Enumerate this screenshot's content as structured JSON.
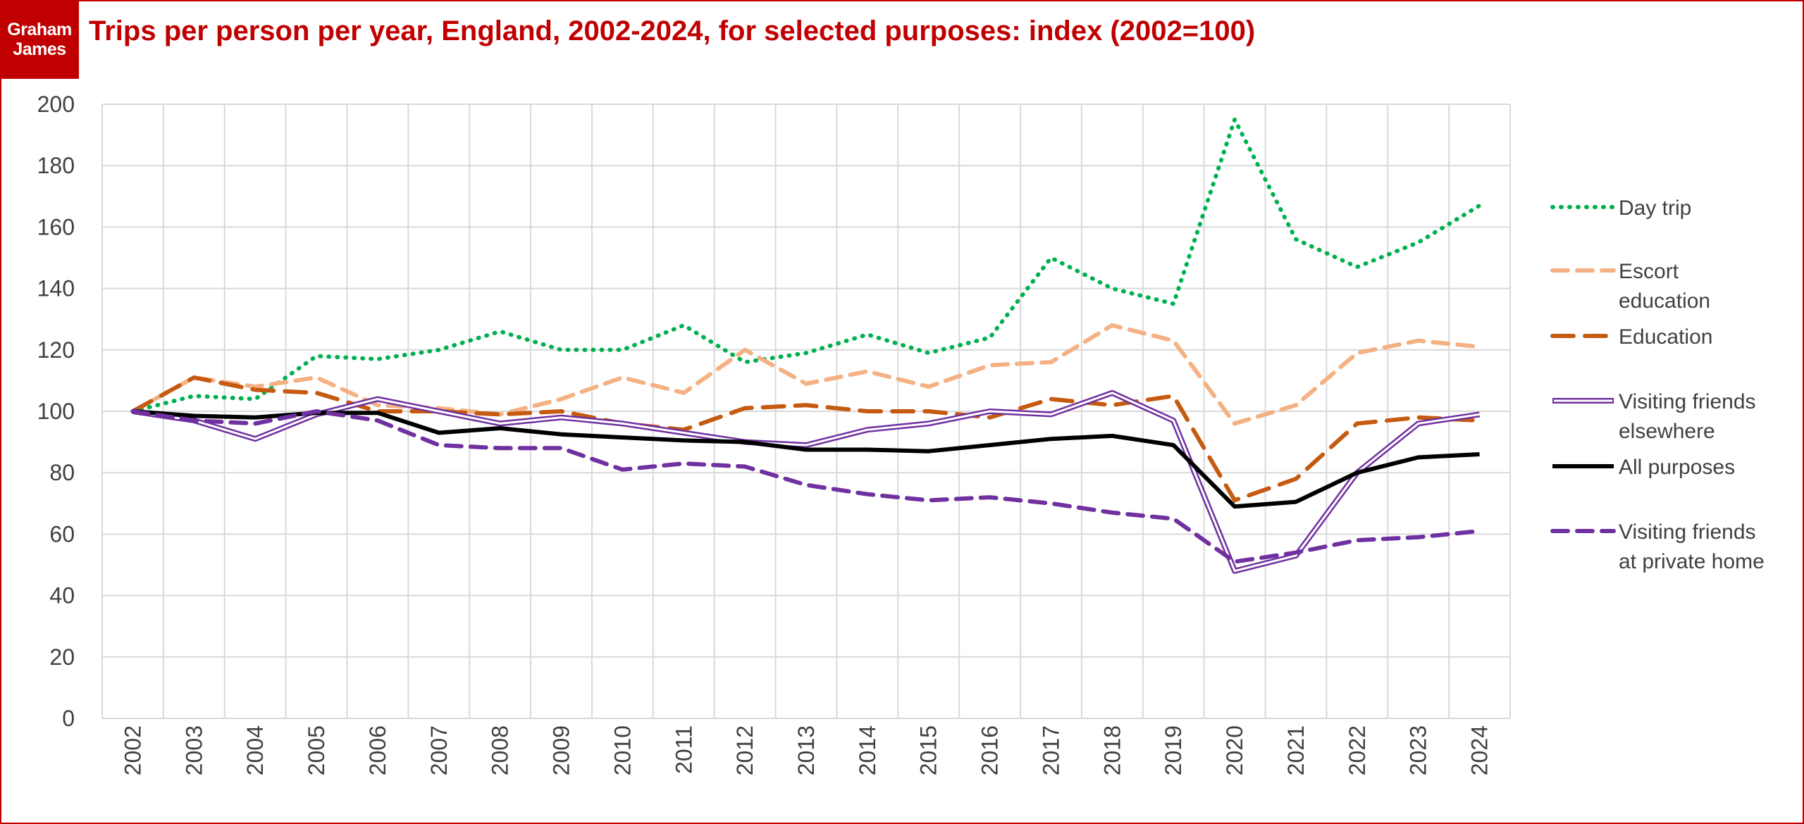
{
  "logo": {
    "line1": "Graham",
    "line2": "James"
  },
  "title": "Trips per person per year, England, 2002-2024, for selected purposes: index (2002=100)",
  "chart_data": {
    "type": "line",
    "title": "Trips per person per year, England, 2002-2024, for selected purposes: index (2002=100)",
    "xlabel": "",
    "ylabel": "",
    "ylim": [
      0,
      200
    ],
    "yticks": [
      0,
      20,
      40,
      60,
      80,
      100,
      120,
      140,
      160,
      180,
      200
    ],
    "grid": true,
    "legend_position": "right",
    "x": [
      "2002",
      "2003",
      "2004",
      "2005",
      "2006",
      "2007",
      "2008",
      "2009",
      "2010",
      "2011",
      "2012",
      "2013",
      "2014",
      "2015",
      "2016",
      "2017",
      "2018",
      "2019",
      "2020",
      "2021",
      "2022",
      "2023",
      "2024"
    ],
    "series": [
      {
        "name": "Day trip",
        "label_lines": [
          "Day trip"
        ],
        "color": "#00b050",
        "style": "dotted",
        "values": [
          100,
          105,
          104,
          118,
          117,
          120,
          126,
          120,
          120,
          128,
          116,
          119,
          125,
          119,
          124,
          150,
          140,
          135,
          195,
          156,
          147,
          155,
          167
        ]
      },
      {
        "name": "Escort education",
        "label_lines": [
          "Escort",
          "education"
        ],
        "color": "#f4b183",
        "style": "dashed",
        "values": [
          100,
          111,
          108,
          111,
          102,
          101,
          99,
          104,
          111,
          106,
          120,
          109,
          113,
          108,
          115,
          116,
          128,
          123,
          96,
          102,
          119,
          123,
          121
        ]
      },
      {
        "name": "Education",
        "label_lines": [
          "Education"
        ],
        "color": "#c55a11",
        "style": "longdash",
        "values": [
          100,
          111,
          107,
          106,
          100,
          100,
          99,
          100,
          96,
          94,
          101,
          102,
          100,
          100,
          98,
          104,
          102,
          105,
          71,
          78,
          96,
          98,
          97
        ]
      },
      {
        "name": "Visiting friends elsewhere",
        "label_lines": [
          "Visiting friends",
          "elsewhere"
        ],
        "color": "#7030a0",
        "style": "double",
        "values": [
          100,
          97,
          91,
          99,
          104,
          100,
          96,
          98,
          96,
          93,
          90,
          89,
          94,
          96,
          100,
          99,
          106,
          97,
          48,
          53,
          80,
          96,
          99
        ]
      },
      {
        "name": "All purposes",
        "label_lines": [
          "All purposes"
        ],
        "color": "#000000",
        "style": "solid",
        "values": [
          100,
          98.5,
          98,
          99.5,
          99.5,
          93,
          94.5,
          92.5,
          91.5,
          90.5,
          90,
          87.5,
          87.5,
          87,
          89,
          91,
          92,
          89,
          69,
          70.5,
          80,
          85,
          86
        ]
      },
      {
        "name": "Visiting friends at private home",
        "label_lines": [
          "Visiting friends",
          "at private home"
        ],
        "color": "#7030a0",
        "style": "dashed",
        "values": [
          100,
          97,
          96,
          100,
          97,
          89,
          88,
          88,
          81,
          83,
          82,
          76,
          73,
          71,
          72,
          70,
          67,
          65,
          51,
          54,
          58,
          59,
          61
        ]
      }
    ]
  }
}
